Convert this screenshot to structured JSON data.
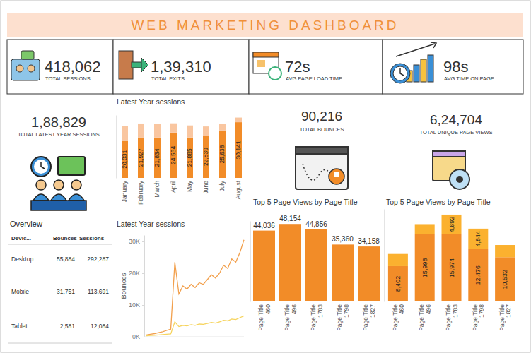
{
  "title": "WEB MARKETING DASHBOARD",
  "kpis": [
    {
      "value": "418,062",
      "label": "TOTAL SESSIONS"
    },
    {
      "value": "1,39,310",
      "label": "TOTAL EXITS"
    },
    {
      "value": "72s",
      "label": "AVG PAGE LOAD TIME"
    },
    {
      "value": "98s",
      "label": "AVG TIME ON PAGE"
    }
  ],
  "summary": [
    {
      "value": "1,88,829",
      "label": "TOTAL LATEST YEAR SESSIONS"
    },
    {
      "value": "90,216",
      "label": "TOTAL BOUNCES"
    },
    {
      "value": "6,24,704",
      "label": "TOTAL UNIQUE PAGE VIEWS"
    }
  ],
  "overview": {
    "title": "Overview",
    "columns": [
      "Devic...",
      "Bounces",
      "Sessions"
    ],
    "rows": [
      [
        "Desktop",
        "55,884",
        "292,287"
      ],
      [
        "Mobile",
        "31,751",
        "113,691"
      ],
      [
        "Tablet",
        "2,581",
        "12,084"
      ]
    ]
  },
  "chart_data": [
    {
      "type": "bar",
      "title": "Latest Year sessions",
      "stacked": true,
      "tick_labels": "x",
      "categories": [
        "January",
        "February",
        "March",
        "April",
        "May",
        "June",
        "July",
        "August"
      ],
      "ylim": [
        0,
        34000
      ],
      "series": [
        {
          "color": "#f28c28",
          "data_labels": true,
          "values": [
            20031,
            21927,
            21834,
            24534,
            21885,
            22839,
            25638,
            30141
          ],
          "value_labels": [
            "20,031",
            "21,927",
            "21,834",
            "24,534",
            "21,885",
            "22,839",
            "25,638",
            "30,141"
          ]
        },
        {
          "color": "#f9c6a0",
          "data_labels": false,
          "values": [
            8000,
            7500,
            7500,
            5000,
            6500,
            5000,
            3500,
            2500
          ]
        }
      ]
    },
    {
      "type": "line",
      "title": "Latest Year sessions",
      "ylabel": "Bounces",
      "tick_labels": "y",
      "categories": [
        null,
        null,
        null,
        null,
        null,
        null,
        null,
        null,
        null,
        null,
        null,
        null,
        null,
        null,
        null,
        null,
        null,
        null,
        null,
        null,
        null,
        null,
        null,
        null,
        null
      ],
      "ylim": [
        0,
        32000
      ],
      "yticks": [
        {
          "value": 0,
          "label": "0K"
        },
        {
          "value": 10000,
          "label": "10K"
        },
        {
          "value": 20000,
          "label": "20K"
        },
        {
          "value": 30000,
          "label": "30K"
        }
      ],
      "series": [
        {
          "color": "#f2a04d",
          "values": [
            600,
            800,
            1000,
            1300,
            1600,
            2000,
            2400,
            23500,
            13500,
            16000,
            15000,
            16500,
            15500,
            17000,
            16500,
            18000,
            19500,
            18500,
            20000,
            22500,
            21500,
            24500,
            23500,
            26500,
            30500
          ]
        },
        {
          "color": "#f6d45e",
          "values": [
            300,
            400,
            500,
            600,
            700,
            800,
            900,
            4700,
            3200,
            3600,
            3400,
            3800,
            3600,
            4000,
            3900,
            4200,
            4500,
            4300,
            4700,
            5200,
            5000,
            5600,
            5400,
            6000,
            6600
          ]
        }
      ]
    },
    {
      "type": "bar",
      "title": "Top 5 Page Views by Page Title",
      "tick_labels": "x",
      "data_labels": true,
      "categories": [
        "Page Title 460",
        "Page Title 496",
        "Page Title 1783",
        "Page Title 1798",
        "Page Title 1827"
      ],
      "values": [
        44036,
        48154,
        44856,
        35360,
        34158
      ],
      "value_labels": [
        "44,036",
        "48,154",
        "44,856",
        "35,360",
        "34,158"
      ],
      "color": "#f28c28",
      "ylim": [
        0,
        50000
      ]
    },
    {
      "type": "bar",
      "title": "Top 5 Page Views by Page Title",
      "stacked": true,
      "tick_labels": "x",
      "categories": [
        "Page Title 460",
        "Page Title 496",
        "Page Title 1783",
        "Page Title 1798",
        "Page Title 1827"
      ],
      "ylim": [
        0,
        22000
      ],
      "series": [
        {
          "color": "#f28c28",
          "data_labels": true,
          "values": [
            8402,
            15998,
            15974,
            12476,
            10532
          ],
          "value_labels": [
            "8,402",
            "15,998",
            "15,974",
            "12,476",
            "10,532"
          ]
        },
        {
          "color": "#fbb12f",
          "data_labels": true,
          "values": [
            2900,
            2400,
            4692,
            4844,
            2900
          ],
          "value_labels": [
            null,
            null,
            "4,692",
            "4,844",
            null
          ]
        }
      ]
    }
  ]
}
